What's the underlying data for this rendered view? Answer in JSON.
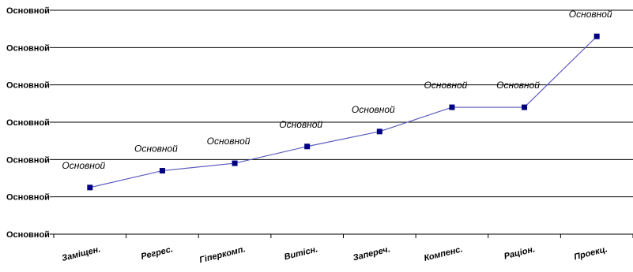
{
  "chart_data": {
    "type": "line",
    "categories": [
      "Заміщен.",
      "Регрес.",
      "Гіперкомп.",
      "Витісн.",
      "Запереч.",
      "Компенс.",
      "Раціон.",
      "Проекц."
    ],
    "series": [
      {
        "values": [
          1.25,
          1.7,
          1.9,
          2.35,
          2.75,
          3.4,
          3.4,
          5.3
        ],
        "data_labels": [
          "Основной",
          "Основной",
          "Основной",
          "Основной",
          "Основной",
          "Основной",
          "Основной",
          "Основной"
        ]
      }
    ],
    "y_tick_labels": [
      "Основной",
      "Основной",
      "Основной",
      "Основной",
      "Основной",
      "Основной",
      "Основной"
    ],
    "ylim": [
      0,
      6
    ],
    "grid": true,
    "legend": "none",
    "colors": {
      "line": "#5b5bbf",
      "marker": "#000080",
      "grid": "#000000"
    }
  }
}
